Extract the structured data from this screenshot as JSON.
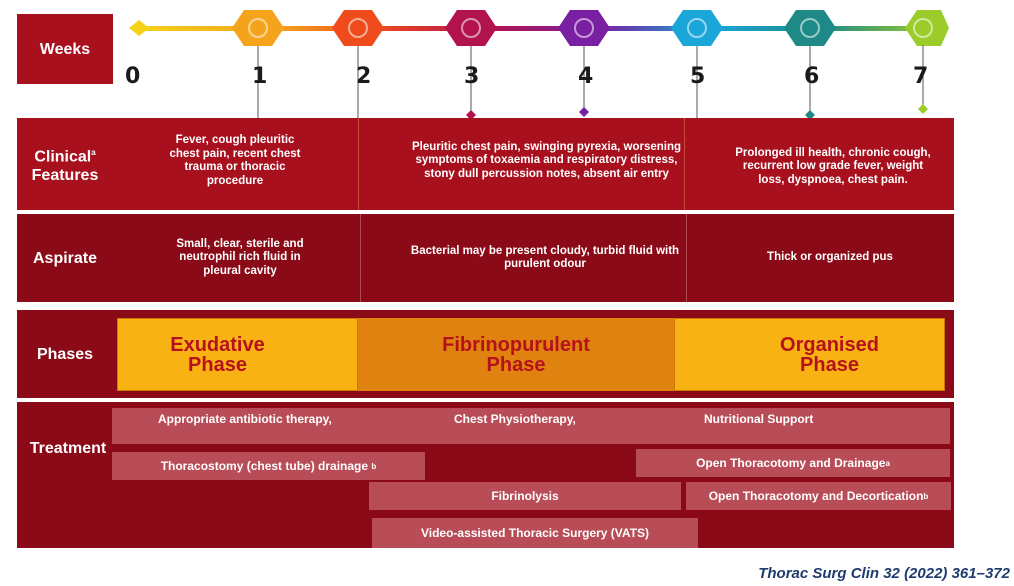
{
  "rows": {
    "weeks": "Weeks",
    "clinical": "Clinical",
    "clinical_sup": "a",
    "features": "Features",
    "aspirate": "Aspirate",
    "phases": "Phases",
    "treatment": "Treatment"
  },
  "weeks": [
    "0",
    "1",
    "2",
    "3",
    "4",
    "5",
    "6",
    "7"
  ],
  "timeline_colors": [
    "#f6d21a",
    "#f5a31a",
    "#ef4b1d",
    "#b2124e",
    "#7a1fa2",
    "#1aa6d8",
    "#1e8a88",
    "#9ccc2a"
  ],
  "clinical": [
    "Fever, cough pleuritic chest pain, recent chest trauma or thoracic procedure",
    "Pleuritic chest pain, swinging pyrexia, worsening symptoms of toxaemia and respiratory distress, stony dull percussion notes, absent air entry",
    "Prolonged ill health, chronic cough, recurrent low grade fever, weight loss, dyspnoea, chest pain."
  ],
  "aspirate": [
    "Small, clear, sterile and neutrophil rich fluid in pleural cavity",
    "Bacterial may be present cloudy, turbid fluid with purulent odour",
    "Thick or organized pus"
  ],
  "phases": [
    {
      "line1": "Exudative",
      "line2": "Phase"
    },
    {
      "line1": "Fibrinopurulent",
      "line2": "Phase"
    },
    {
      "line1": "Organised",
      "line2": "Phase"
    }
  ],
  "treatment": {
    "antibiotic": "Appropriate antibiotic therapy,",
    "physio": "Chest Physiotherapy,",
    "nutrition": "Nutritional Support",
    "chest_tube": "Thoracostomy (chest tube) drainage",
    "chest_tube_sup": "b",
    "open_drainage": "Open Thoracotomy and Drainage",
    "open_drainage_sup": "a",
    "fibrinolysis": "Fibrinolysis",
    "decortication": "Open Thoracotomy and Decortication",
    "decortication_sup": "b",
    "vats": "Video-assisted Thoracic Surgery (VATS)"
  },
  "citation": "Thorac Surg Clin 32 (2022) 361–372",
  "colors": {
    "dark_red": "#8b0a17",
    "red": "#a8101e",
    "phase_yellow": "#f9b214",
    "phase_orange": "#e0820f",
    "treatment_bar": "#b94d57"
  }
}
